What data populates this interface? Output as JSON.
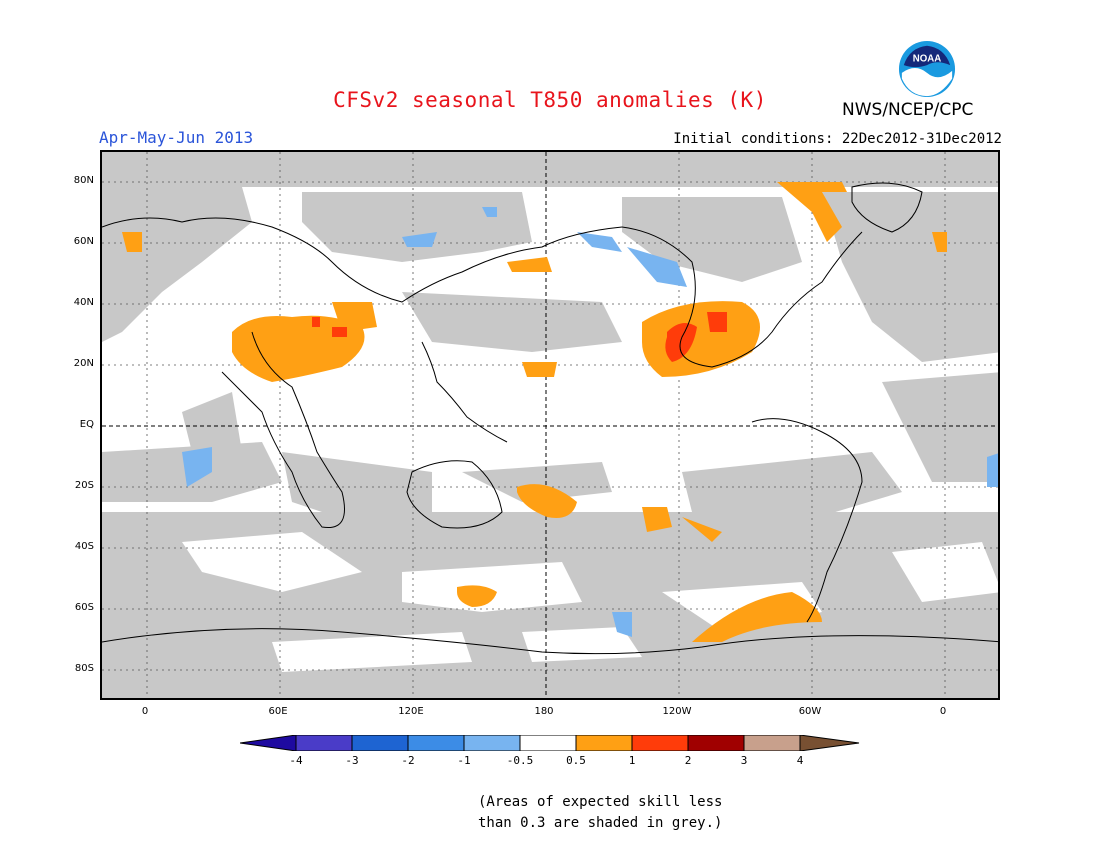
{
  "title": "CFSv2 seasonal T850 anomalies (K)",
  "season": "Apr-May-Jun 2013",
  "agency": "NWS/NCEP/CPC",
  "logo_text": "NOAA",
  "initial_conditions": "Initial conditions: 22Dec2012-31Dec2012",
  "lat_labels": [
    "80N",
    "60N",
    "40N",
    "20N",
    "EQ",
    "20S",
    "40S",
    "60S",
    "80S"
  ],
  "lon_labels": [
    "0",
    "60E",
    "120E",
    "180",
    "120W",
    "60W",
    "0"
  ],
  "colorbar": {
    "labels": [
      "-4",
      "-3",
      "-2",
      "-1",
      "-0.5",
      "0.5",
      "1",
      "2",
      "3",
      "4"
    ],
    "colors": [
      "#1e0aa0",
      "#4a3cc8",
      "#1e64d2",
      "#3c8ce6",
      "#78b4f0",
      "#ffffff",
      "#ffa014",
      "#ff3c0a",
      "#a00000",
      "#c8a08c",
      "#785032"
    ],
    "skill_grey": "#c8c8c8"
  },
  "note": {
    "line1": "(Areas of expected skill less",
    "line2": "than 0.3 are shaded in grey.)"
  }
}
